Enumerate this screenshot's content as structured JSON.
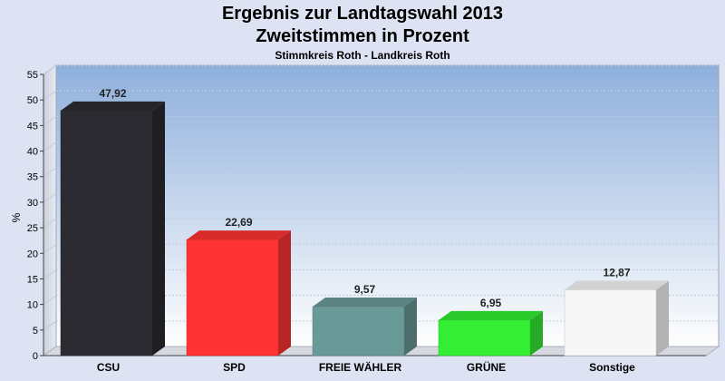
{
  "header": {
    "title_line1": "Ergebnis zur Landtagswahl 2013",
    "title_line2": "Zweitstimmen in Prozent",
    "subtitle": "Stimmkreis Roth - Landkreis Roth"
  },
  "chart_data": {
    "type": "bar",
    "title": "Ergebnis zur Landtagswahl 2013",
    "subtitle": "Zweitstimmen in Prozent",
    "caption": "Stimmkreis Roth - Landkreis Roth",
    "xlabel": "",
    "ylabel": "%",
    "ylim": [
      0,
      55
    ],
    "yticks": [
      0,
      5,
      10,
      15,
      20,
      25,
      30,
      35,
      40,
      45,
      50,
      55
    ],
    "grid": true,
    "categories": [
      "CSU",
      "SPD",
      "FREIE WÄHLER",
      "GRÜNE",
      "Sonstige"
    ],
    "values": [
      47.92,
      22.69,
      9.57,
      6.95,
      12.87
    ],
    "value_labels": [
      "47,92",
      "22,69",
      "9,57",
      "6,95",
      "12,87"
    ],
    "colors": [
      "#2b2b31",
      "#ff3333",
      "#6a9a98",
      "#33ee33",
      "#f7f7f7"
    ]
  }
}
